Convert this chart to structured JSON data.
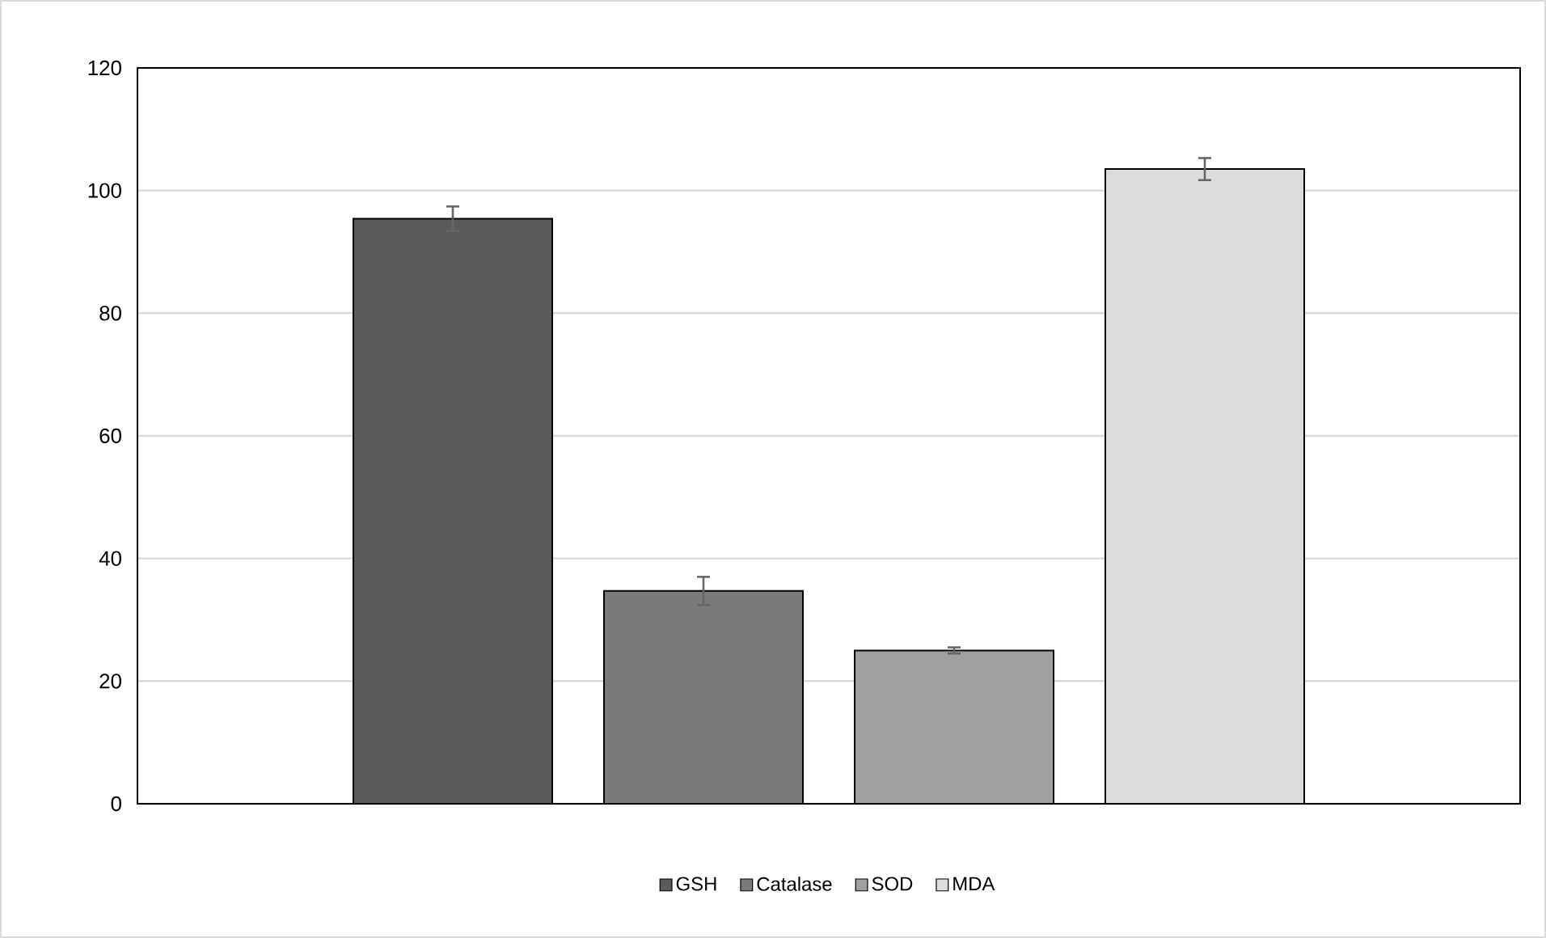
{
  "chart_data": {
    "type": "bar",
    "categories": [
      null
    ],
    "series": [
      {
        "name": "GSH",
        "color": "#5a5a5a",
        "values": [
          95.4
        ],
        "errors": [
          2.0
        ]
      },
      {
        "name": "Catalase",
        "color": "#7a7a7a",
        "values": [
          34.7
        ],
        "errors": [
          2.3
        ]
      },
      {
        "name": "SOD",
        "color": "#a0a0a0",
        "values": [
          25.0
        ],
        "errors": [
          0.5
        ]
      },
      {
        "name": "MDA",
        "color": "#dcdcdc",
        "values": [
          103.5
        ],
        "errors": [
          1.8
        ]
      }
    ],
    "ylim": [
      0,
      120
    ],
    "yticks": [
      0,
      20,
      40,
      60,
      80,
      100,
      120
    ],
    "grid": "y",
    "legend": "bottom"
  }
}
